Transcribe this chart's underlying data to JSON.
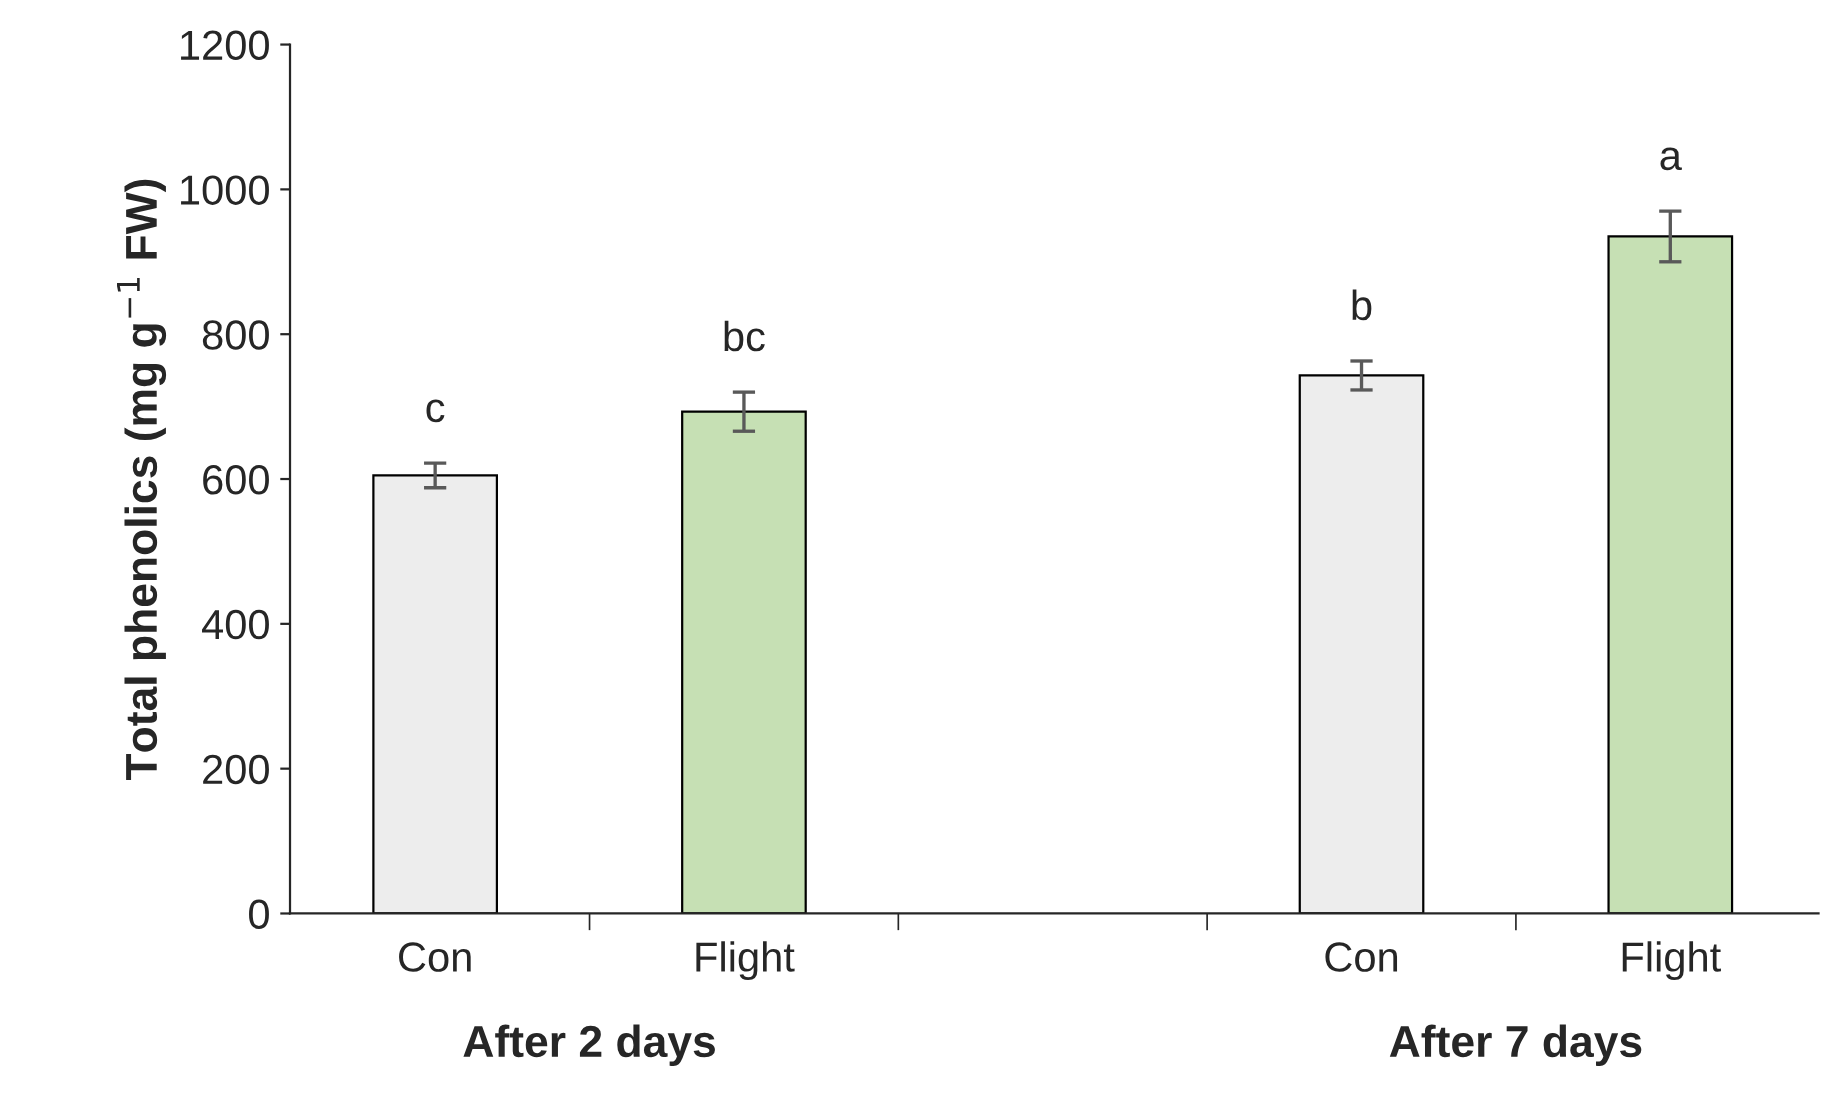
{
  "chart_data": {
    "type": "bar",
    "ylabel": "Total phenolics (mg g$^{−1}$ FW)",
    "categories": [
      "Con",
      "Flight",
      null,
      "Con",
      "Flight"
    ],
    "values": [
      605,
      693,
      null,
      743,
      935
    ],
    "errors": [
      17,
      27,
      null,
      20,
      35
    ],
    "colors": [
      "#ededed",
      "#c6e0b4",
      "#ffffff",
      "#ededed",
      "#c6e0b4"
    ],
    "value_labels": [
      "c",
      "bc",
      null,
      "b",
      "a"
    ],
    "annotations": [
      "After 2 days",
      "After 7 days"
    ],
    "ylim": [
      0,
      1200
    ],
    "yticks": [
      0,
      200,
      400,
      600,
      800,
      1000,
      1200
    ],
    "grid": false,
    "legend": false
  }
}
